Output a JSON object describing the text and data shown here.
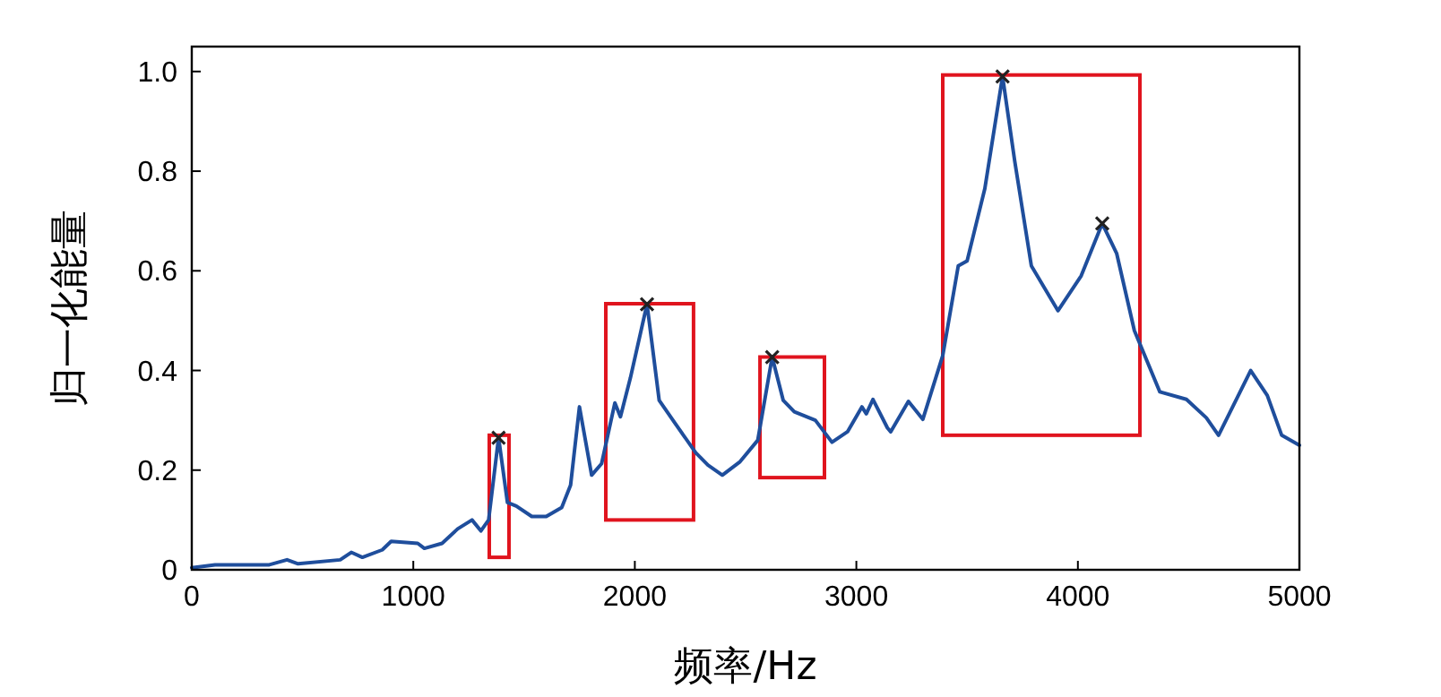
{
  "chart_data": {
    "type": "line",
    "xlabel": "频率/Hz",
    "ylabel": "归一化能量",
    "xlim": [
      0,
      5000
    ],
    "ylim": [
      0,
      1.05
    ],
    "xticks": [
      0,
      1000,
      2000,
      3000,
      4000,
      5000
    ],
    "yticks": [
      0,
      0.2,
      0.4,
      0.6,
      0.8,
      {
        "value": 1,
        "label": "1.0"
      }
    ],
    "grid": false,
    "series": [
      {
        "color": "#1f4e9c",
        "marker": "none",
        "x": [
          0,
          105,
          350,
          430,
          480,
          670,
          720,
          770,
          860,
          900,
          1020,
          1050,
          1130,
          1200,
          1265,
          1305,
          1340,
          1385,
          1425,
          1465,
          1535,
          1600,
          1670,
          1710,
          1750,
          1805,
          1850,
          1910,
          1935,
          1980,
          2055,
          2110,
          2180,
          2275,
          2330,
          2395,
          2475,
          2555,
          2620,
          2670,
          2720,
          2815,
          2890,
          2960,
          3025,
          3045,
          3075,
          3140,
          3155,
          3235,
          3300,
          3390,
          3460,
          3500,
          3580,
          3660,
          3715,
          3790,
          3910,
          4015,
          4110,
          4175,
          4255,
          4370,
          4490,
          4580,
          4635,
          4780,
          4855,
          4920,
          5000
        ],
        "values": [
          0.004,
          0.01,
          0.01,
          0.02,
          0.012,
          0.02,
          0.035,
          0.025,
          0.04,
          0.057,
          0.053,
          0.043,
          0.053,
          0.082,
          0.1,
          0.078,
          0.1,
          0.265,
          0.135,
          0.128,
          0.107,
          0.107,
          0.125,
          0.17,
          0.327,
          0.19,
          0.213,
          0.335,
          0.307,
          0.385,
          0.533,
          0.34,
          0.295,
          0.235,
          0.21,
          0.19,
          0.217,
          0.26,
          0.427,
          0.34,
          0.317,
          0.3,
          0.256,
          0.277,
          0.327,
          0.313,
          0.342,
          0.285,
          0.277,
          0.338,
          0.302,
          0.43,
          0.61,
          0.62,
          0.765,
          0.99,
          0.82,
          0.61,
          0.52,
          0.59,
          0.695,
          0.635,
          0.48,
          0.357,
          0.342,
          0.305,
          0.27,
          0.4,
          0.35,
          0.27,
          0.25
        ]
      },
      {
        "type": "scatter",
        "color": "#222222",
        "marker": "cross",
        "x": [
          1385,
          2055,
          2620,
          3660,
          4110
        ],
        "values": [
          0.265,
          0.533,
          0.427,
          0.99,
          0.695
        ]
      }
    ]
  }
}
